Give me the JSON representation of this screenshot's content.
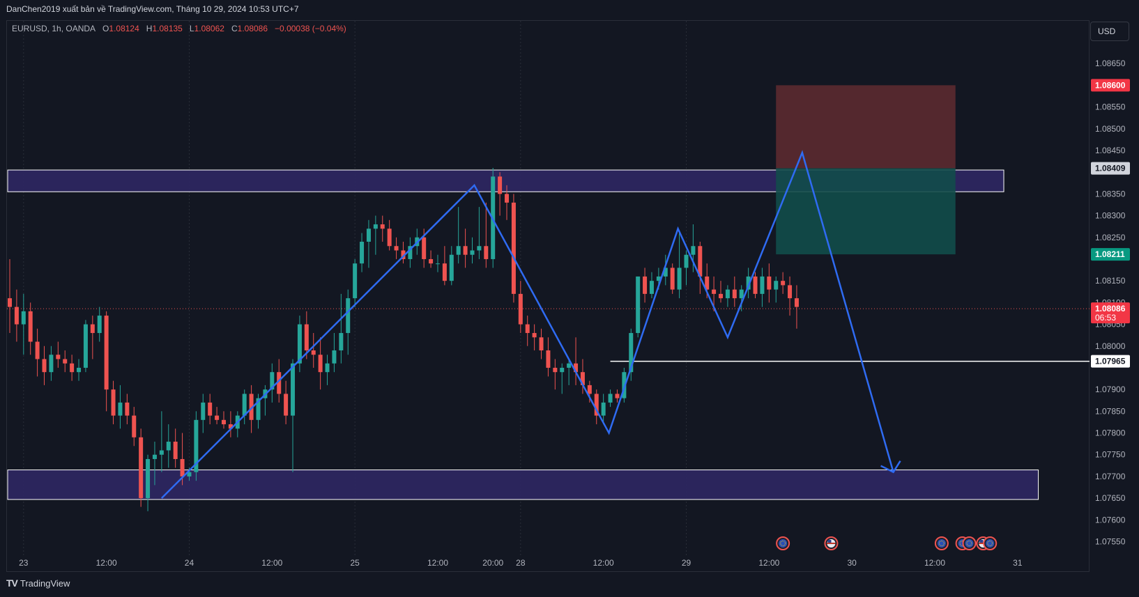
{
  "header": {
    "publish_line": "DanChen2019 xuất bản về TradingView.com, Tháng 10 29, 2024 10:53 UTC+7"
  },
  "legend": {
    "symbol": "EURUSD, 1h, OANDA",
    "open_label": "O",
    "open": "1.08124",
    "high_label": "H",
    "high": "1.08135",
    "low_label": "L",
    "low": "1.08062",
    "close_label": "C",
    "close": "1.08086",
    "change": "−0.00038 (−0.04%)"
  },
  "currency_button": "USD",
  "footer": {
    "logo_mark": "TV",
    "brand": "TradingView"
  },
  "colors": {
    "background": "#131722",
    "up": "#26a69a",
    "down": "#ef5350",
    "grid": "#2a2e39",
    "zone_fill": "#2c2660",
    "stop_fill": "#5c2a30",
    "target_fill": "#124c4a",
    "path": "#2f6bf2"
  },
  "chart_data": {
    "type": "candlestick",
    "symbol": "EURUSD",
    "interval": "1h",
    "source": "OANDA",
    "ylim": [
      1.0753,
      1.087
    ],
    "y_ticks": [
      "1.07550",
      "1.07600",
      "1.07650",
      "1.07700",
      "1.07750",
      "1.07800",
      "1.07850",
      "1.07900",
      "1.08000",
      "1.08050",
      "1.08100",
      "1.08150",
      "1.08250",
      "1.08300",
      "1.08350",
      "1.08450",
      "1.08500",
      "1.08550",
      "1.08650"
    ],
    "x_ticks": [
      {
        "label": "23",
        "bar": 2
      },
      {
        "label": "12:00",
        "bar": 14
      },
      {
        "label": "24",
        "bar": 26
      },
      {
        "label": "12:00",
        "bar": 38
      },
      {
        "label": "25",
        "bar": 50
      },
      {
        "label": "12:00",
        "bar": 62
      },
      {
        "label": "20:00",
        "bar": 70
      },
      {
        "label": "28",
        "bar": 74
      },
      {
        "label": "12:00",
        "bar": 86
      },
      {
        "label": "29",
        "bar": 98
      },
      {
        "label": "12:00",
        "bar": 110
      },
      {
        "label": "30",
        "bar": 122
      },
      {
        "label": "12:00",
        "bar": 134
      },
      {
        "label": "31",
        "bar": 146
      }
    ],
    "day_separators_bar": [
      2,
      26,
      50,
      74,
      98
    ],
    "price_labels": [
      {
        "value": 1.086,
        "text": "1.08600",
        "color": "#f23645",
        "text_color": "#ffffff"
      },
      {
        "value": 1.08409,
        "text": "1.08409",
        "color": "#d1d4dc",
        "text_color": "#131722"
      },
      {
        "value": 1.08211,
        "text": "1.08211",
        "color": "#089981",
        "text_color": "#ffffff"
      },
      {
        "value": 1.08086,
        "text": "1.08086",
        "sub": "06:53",
        "color": "#f23645",
        "text_color": "#ffffff"
      },
      {
        "value": 1.07965,
        "text": "1.07965",
        "color": "#ffffff",
        "text_color": "#131722"
      }
    ],
    "zones": [
      {
        "name": "resistance-zone",
        "y1": 1.08405,
        "y2": 1.08355,
        "bar1": 0,
        "bar2": 144
      },
      {
        "name": "support-zone",
        "y1": 1.07715,
        "y2": 1.07647,
        "bar1": 0,
        "bar2": 149
      }
    ],
    "position": {
      "entry": 1.08409,
      "stop": 1.086,
      "target": 1.08211,
      "bar1": 111,
      "bar2": 137
    },
    "level_line": {
      "value": 1.07965,
      "bar1": 87,
      "bar2": 149
    },
    "current_price_line": 1.08086,
    "path": [
      [
        22,
        1.0765
      ],
      [
        67.3,
        1.0837
      ],
      [
        86.8,
        1.078
      ],
      [
        96.8,
        1.0827
      ],
      [
        104,
        1.0802
      ],
      [
        114.8,
        1.08445
      ],
      [
        128,
        1.0771
      ]
    ],
    "event_markers": [
      {
        "bar": 112,
        "flag": "eu"
      },
      {
        "bar": 119,
        "flag": "us"
      },
      {
        "bar": 135,
        "flag": "eu"
      },
      {
        "bar": 138,
        "flag": "eu"
      },
      {
        "bar": 139,
        "flag": "eu"
      },
      {
        "bar": 141,
        "flag": "us"
      },
      {
        "bar": 142,
        "flag": "eu"
      }
    ],
    "candles": [
      [
        1.0811,
        1.082,
        1.0803,
        1.0809
      ],
      [
        1.0809,
        1.0813,
        1.0801,
        1.0805
      ],
      [
        1.0805,
        1.0812,
        1.0798,
        1.0808
      ],
      [
        1.0808,
        1.081,
        1.0798,
        1.0801
      ],
      [
        1.0801,
        1.0804,
        1.0793,
        1.0797
      ],
      [
        1.0797,
        1.08,
        1.0791,
        1.0794
      ],
      [
        1.0794,
        1.08,
        1.0792,
        1.0798
      ],
      [
        1.0798,
        1.0801,
        1.0795,
        1.0797
      ],
      [
        1.0797,
        1.0799,
        1.0794,
        1.0796
      ],
      [
        1.0796,
        1.0798,
        1.0792,
        1.0794
      ],
      [
        1.0794,
        1.0797,
        1.0792,
        1.0795
      ],
      [
        1.0795,
        1.0806,
        1.0794,
        1.0805
      ],
      [
        1.0805,
        1.0807,
        1.0797,
        1.0803
      ],
      [
        1.0803,
        1.0809,
        1.0801,
        1.0807
      ],
      [
        1.0807,
        1.0808,
        1.0785,
        1.079
      ],
      [
        1.079,
        1.0792,
        1.0782,
        1.0784
      ],
      [
        1.0784,
        1.0791,
        1.0781,
        1.0787
      ],
      [
        1.0787,
        1.0789,
        1.0782,
        1.0784
      ],
      [
        1.0784,
        1.0786,
        1.0777,
        1.0779
      ],
      [
        1.0779,
        1.0781,
        1.0763,
        1.0765
      ],
      [
        1.0765,
        1.0775,
        1.0762,
        1.0774
      ],
      [
        1.0774,
        1.0778,
        1.0768,
        1.0775
      ],
      [
        1.0775,
        1.0785,
        1.0771,
        1.0776
      ],
      [
        1.0776,
        1.0782,
        1.0772,
        1.0778
      ],
      [
        1.0778,
        1.0781,
        1.0772,
        1.0774
      ],
      [
        1.0774,
        1.078,
        1.0768,
        1.077
      ],
      [
        1.077,
        1.0772,
        1.0769,
        1.0771
      ],
      [
        1.0771,
        1.0785,
        1.0769,
        1.0783
      ],
      [
        1.0783,
        1.0789,
        1.078,
        1.0787
      ],
      [
        1.0787,
        1.0789,
        1.0782,
        1.0784
      ],
      [
        1.0784,
        1.0786,
        1.0782,
        1.0783
      ],
      [
        1.0783,
        1.0785,
        1.0781,
        1.0782
      ],
      [
        1.0782,
        1.0785,
        1.0779,
        1.0781
      ],
      [
        1.0781,
        1.0785,
        1.0779,
        1.0784
      ],
      [
        1.0784,
        1.079,
        1.0782,
        1.0789
      ],
      [
        1.0789,
        1.0791,
        1.078,
        1.0783
      ],
      [
        1.0783,
        1.0789,
        1.0781,
        1.0788
      ],
      [
        1.0788,
        1.0791,
        1.0784,
        1.079
      ],
      [
        1.079,
        1.0796,
        1.0787,
        1.0794
      ],
      [
        1.0794,
        1.0797,
        1.0787,
        1.0789
      ],
      [
        1.0789,
        1.0792,
        1.0782,
        1.0784
      ],
      [
        1.0784,
        1.0797,
        1.0771,
        1.0796
      ],
      [
        1.0796,
        1.0807,
        1.0794,
        1.0805
      ],
      [
        1.0805,
        1.0808,
        1.0797,
        1.0799
      ],
      [
        1.0799,
        1.0803,
        1.0795,
        1.0798
      ],
      [
        1.0798,
        1.0802,
        1.079,
        1.0794
      ],
      [
        1.0794,
        1.0798,
        1.0791,
        1.0796
      ],
      [
        1.0796,
        1.0803,
        1.0794,
        1.0799
      ],
      [
        1.0799,
        1.0812,
        1.0796,
        1.0803
      ],
      [
        1.0803,
        1.0813,
        1.0798,
        1.0811
      ],
      [
        1.0811,
        1.082,
        1.0809,
        1.0819
      ],
      [
        1.0819,
        1.0826,
        1.0817,
        1.0824
      ],
      [
        1.0824,
        1.0829,
        1.0818,
        1.0827
      ],
      [
        1.0827,
        1.083,
        1.0821,
        1.0828
      ],
      [
        1.0828,
        1.083,
        1.0824,
        1.0827
      ],
      [
        1.0827,
        1.0829,
        1.0822,
        1.0823
      ],
      [
        1.0823,
        1.0825,
        1.082,
        1.0822
      ],
      [
        1.0822,
        1.0824,
        1.0819,
        1.082
      ],
      [
        1.082,
        1.0825,
        1.0818,
        1.0823
      ],
      [
        1.0823,
        1.0827,
        1.0821,
        1.0825
      ],
      [
        1.0825,
        1.0827,
        1.0818,
        1.082
      ],
      [
        1.082,
        1.0822,
        1.0818,
        1.0819
      ],
      [
        1.0819,
        1.0821,
        1.0817,
        1.0819
      ],
      [
        1.0819,
        1.0823,
        1.0814,
        1.0815
      ],
      [
        1.0815,
        1.0823,
        1.0814,
        1.0821
      ],
      [
        1.0821,
        1.0832,
        1.0819,
        1.0823
      ],
      [
        1.0823,
        1.0827,
        1.0818,
        1.0821
      ],
      [
        1.0821,
        1.0825,
        1.0819,
        1.0822
      ],
      [
        1.0822,
        1.0832,
        1.082,
        1.0823
      ],
      [
        1.0823,
        1.0833,
        1.0818,
        1.082
      ],
      [
        1.082,
        1.0841,
        1.0818,
        1.0839
      ],
      [
        1.0839,
        1.084,
        1.083,
        1.0835
      ],
      [
        1.0835,
        1.0837,
        1.0829,
        1.0833
      ],
      [
        1.0833,
        1.0835,
        1.081,
        1.0812
      ],
      [
        1.0812,
        1.0815,
        1.0803,
        1.0805
      ],
      [
        1.0805,
        1.0807,
        1.08,
        1.0803
      ],
      [
        1.0803,
        1.0805,
        1.0799,
        1.0802
      ],
      [
        1.0802,
        1.0804,
        1.0797,
        1.0799
      ],
      [
        1.0799,
        1.0802,
        1.0793,
        1.0795
      ],
      [
        1.0795,
        1.0797,
        1.079,
        1.0794
      ],
      [
        1.0794,
        1.0796,
        1.0789,
        1.0795
      ],
      [
        1.0795,
        1.0797,
        1.0791,
        1.0796
      ],
      [
        1.0796,
        1.0802,
        1.0791,
        1.0794
      ],
      [
        1.0794,
        1.0797,
        1.0789,
        1.0791
      ],
      [
        1.0791,
        1.0792,
        1.0787,
        1.0789
      ],
      [
        1.0789,
        1.079,
        1.0782,
        1.0784
      ],
      [
        1.0784,
        1.0789,
        1.0782,
        1.0787
      ],
      [
        1.0787,
        1.079,
        1.0786,
        1.0789
      ],
      [
        1.0789,
        1.079,
        1.0787,
        1.0788
      ],
      [
        1.0788,
        1.0795,
        1.0787,
        1.0794
      ],
      [
        1.0794,
        1.0804,
        1.0792,
        1.0803
      ],
      [
        1.0803,
        1.0816,
        1.0802,
        1.0816
      ],
      [
        1.0816,
        1.0818,
        1.081,
        1.0812
      ],
      [
        1.0812,
        1.0817,
        1.0811,
        1.0815
      ],
      [
        1.0815,
        1.0818,
        1.0813,
        1.0816
      ],
      [
        1.0816,
        1.0821,
        1.0814,
        1.0818
      ],
      [
        1.0818,
        1.0819,
        1.0812,
        1.0813
      ],
      [
        1.0813,
        1.0826,
        1.0811,
        1.0818
      ],
      [
        1.0818,
        1.0822,
        1.0814,
        1.0821
      ],
      [
        1.0821,
        1.0828,
        1.0817,
        1.0823
      ],
      [
        1.0823,
        1.0824,
        1.0812,
        1.0816
      ],
      [
        1.0816,
        1.0819,
        1.0811,
        1.0813
      ],
      [
        1.0813,
        1.0816,
        1.0808,
        1.0812
      ],
      [
        1.0812,
        1.0815,
        1.081,
        1.0811
      ],
      [
        1.0811,
        1.0814,
        1.0809,
        1.0813
      ],
      [
        1.0813,
        1.0816,
        1.0809,
        1.0811
      ],
      [
        1.0811,
        1.0814,
        1.0808,
        1.0813
      ],
      [
        1.0813,
        1.0818,
        1.0811,
        1.0816
      ],
      [
        1.0816,
        1.0817,
        1.0811,
        1.0812
      ],
      [
        1.0812,
        1.0818,
        1.0809,
        1.0816
      ],
      [
        1.0816,
        1.0819,
        1.081,
        1.0813
      ],
      [
        1.0813,
        1.0816,
        1.081,
        1.0815
      ],
      [
        1.0815,
        1.0817,
        1.0812,
        1.0814
      ],
      [
        1.0814,
        1.0816,
        1.0807,
        1.0811
      ],
      [
        1.0811,
        1.0814,
        1.0804,
        1.0809
      ]
    ]
  }
}
